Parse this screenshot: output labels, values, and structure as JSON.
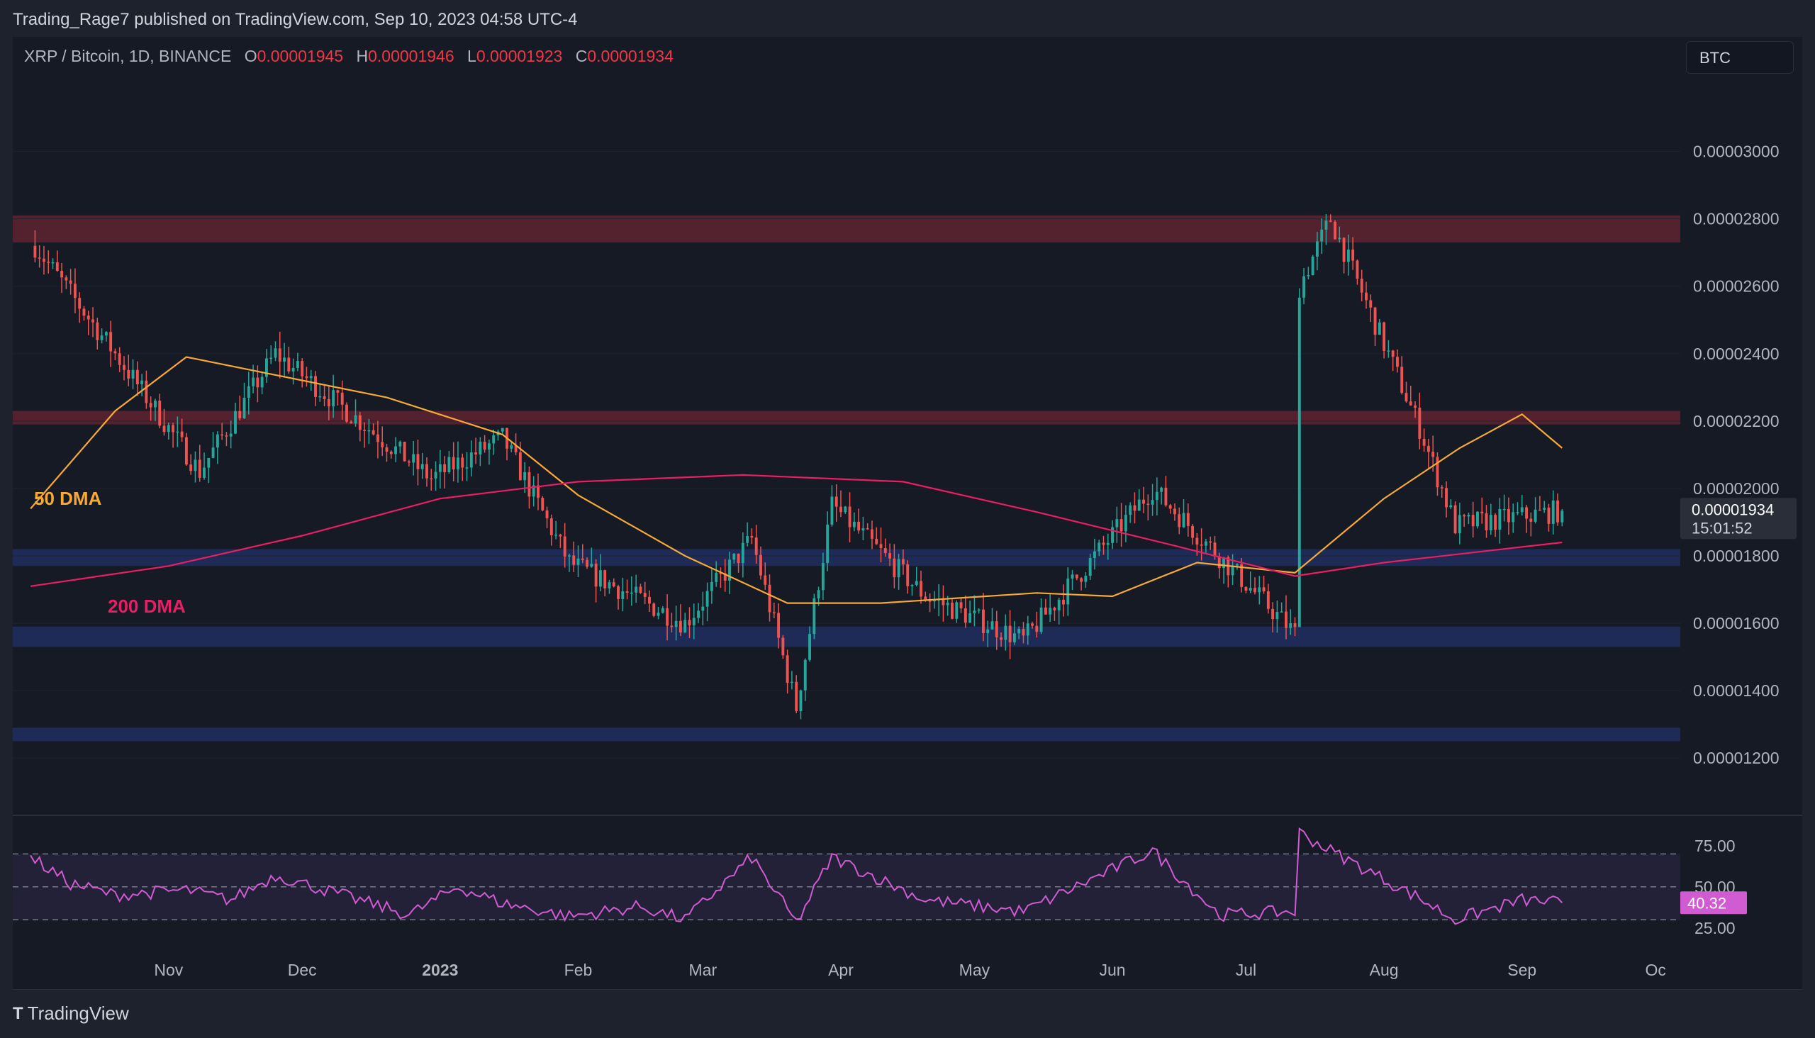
{
  "header": {
    "published": "Trading_Rage7 published on TradingView.com, Sep 10, 2023 04:58 UTC-4"
  },
  "legend": {
    "symbol": "XRP / Bitcoin, 1D, BINANCE",
    "o_label": "O",
    "o_value": "0.00001945",
    "h_label": "H",
    "h_value": "0.00001946",
    "l_label": "L",
    "l_value": "0.00001923",
    "c_label": "C",
    "c_value": "0.00001934"
  },
  "currency_button": "BTC",
  "footer": {
    "brand": "TradingView",
    "brand_icon": "tradingview-logo-icon"
  },
  "colors": {
    "background": "#161a25",
    "up": "#26a69a",
    "down": "#ef5350",
    "ma50": "#f7a935",
    "ma200": "#e91e63",
    "resistance_zone": "#5b2430",
    "support_zone": "#1e2d5c",
    "rsi": "#d15bd1"
  },
  "chart_data": [
    {
      "type": "candlestick",
      "title": "XRP / Bitcoin, 1D, BINANCE",
      "x_tick_labels": [
        "Nov",
        "Dec",
        "2023",
        "Feb",
        "Mar",
        "Apr",
        "May",
        "Jun",
        "Jul",
        "Aug",
        "Sep",
        "Oc"
      ],
      "y_tick_labels": [
        "0.00003000",
        "0.00002800",
        "0.00002600",
        "0.00002400",
        "0.00002200",
        "0.00002000",
        "0.00001800",
        "0.00001600",
        "0.00001400",
        "0.00001200"
      ],
      "ylim": [
        1.11e-05,
        3.18e-05
      ],
      "price_label": {
        "value": "0.00001934",
        "countdown": "15:01:52"
      },
      "key_points": [
        {
          "date": "2022-10-02",
          "price": 2.72e-05
        },
        {
          "date": "2022-10-20",
          "price": 2.4e-05
        },
        {
          "date": "2022-11-08",
          "price": 2.05e-05
        },
        {
          "date": "2022-11-25",
          "price": 2.4e-05
        },
        {
          "date": "2022-12-30",
          "price": 2.03e-05
        },
        {
          "date": "2023-01-15",
          "price": 2.15e-05
        },
        {
          "date": "2023-01-30",
          "price": 1.78e-05
        },
        {
          "date": "2023-02-25",
          "price": 1.6e-05
        },
        {
          "date": "2023-03-12",
          "price": 1.85e-05
        },
        {
          "date": "2023-03-22",
          "price": 1.35e-05
        },
        {
          "date": "2023-03-30",
          "price": 1.95e-05
        },
        {
          "date": "2023-04-20",
          "price": 1.68e-05
        },
        {
          "date": "2023-05-12",
          "price": 1.55e-05
        },
        {
          "date": "2023-06-10",
          "price": 2e-05
        },
        {
          "date": "2023-07-12",
          "price": 1.57e-05
        },
        {
          "date": "2023-07-13",
          "price": 2.6e-05
        },
        {
          "date": "2023-07-20",
          "price": 2.8e-05
        },
        {
          "date": "2023-08-09",
          "price": 2.18e-05
        },
        {
          "date": "2023-08-17",
          "price": 1.89e-05
        },
        {
          "date": "2023-09-10",
          "price": 1.934e-05
        }
      ],
      "zones": [
        {
          "kind": "resistance",
          "from": 2.73e-05,
          "to": 2.81e-05
        },
        {
          "kind": "resistance",
          "from": 2.19e-05,
          "to": 2.23e-05
        },
        {
          "kind": "support",
          "from": 1.77e-05,
          "to": 1.82e-05
        },
        {
          "kind": "support",
          "from": 1.53e-05,
          "to": 1.59e-05
        },
        {
          "kind": "support",
          "from": 1.25e-05,
          "to": 1.29e-05
        }
      ],
      "series": [
        {
          "name": "50 DMA",
          "points": [
            {
              "date": "2022-10-01",
              "value": 1.94e-05
            },
            {
              "date": "2022-10-20",
              "value": 2.23e-05
            },
            {
              "date": "2022-11-05",
              "value": 2.39e-05
            },
            {
              "date": "2022-11-20",
              "value": 2.35e-05
            },
            {
              "date": "2022-12-20",
              "value": 2.27e-05
            },
            {
              "date": "2023-01-15",
              "value": 2.16e-05
            },
            {
              "date": "2023-02-01",
              "value": 1.98e-05
            },
            {
              "date": "2023-02-25",
              "value": 1.8e-05
            },
            {
              "date": "2023-03-20",
              "value": 1.66e-05
            },
            {
              "date": "2023-04-10",
              "value": 1.66e-05
            },
            {
              "date": "2023-05-15",
              "value": 1.69e-05
            },
            {
              "date": "2023-06-01",
              "value": 1.68e-05
            },
            {
              "date": "2023-06-20",
              "value": 1.78e-05
            },
            {
              "date": "2023-07-12",
              "value": 1.75e-05
            },
            {
              "date": "2023-08-01",
              "value": 1.97e-05
            },
            {
              "date": "2023-08-18",
              "value": 2.12e-05
            },
            {
              "date": "2023-09-01",
              "value": 2.22e-05
            },
            {
              "date": "2023-09-10",
              "value": 2.12e-05
            }
          ]
        },
        {
          "name": "200 DMA",
          "points": [
            {
              "date": "2022-10-01",
              "value": 1.71e-05
            },
            {
              "date": "2022-11-01",
              "value": 1.77e-05
            },
            {
              "date": "2022-12-01",
              "value": 1.86e-05
            },
            {
              "date": "2023-01-01",
              "value": 1.97e-05
            },
            {
              "date": "2023-02-01",
              "value": 2.02e-05
            },
            {
              "date": "2023-03-10",
              "value": 2.04e-05
            },
            {
              "date": "2023-04-15",
              "value": 2.02e-05
            },
            {
              "date": "2023-05-15",
              "value": 1.93e-05
            },
            {
              "date": "2023-06-15",
              "value": 1.83e-05
            },
            {
              "date": "2023-07-12",
              "value": 1.74e-05
            },
            {
              "date": "2023-08-01",
              "value": 1.78e-05
            },
            {
              "date": "2023-09-10",
              "value": 1.84e-05
            }
          ]
        }
      ],
      "annotations": [
        "50 DMA",
        "200 DMA"
      ]
    },
    {
      "type": "line",
      "title": "",
      "y_tick_labels": [
        "75.00",
        "50.00",
        "25.00"
      ],
      "ylim": [
        15,
        90
      ],
      "levels": [
        70,
        50,
        30
      ],
      "current_value_label": "40.32",
      "series": [
        {
          "name": "",
          "points": [
            {
              "date": "2022-10-01",
              "value": 68
            },
            {
              "date": "2022-10-10",
              "value": 52
            },
            {
              "date": "2022-10-20",
              "value": 45
            },
            {
              "date": "2022-11-05",
              "value": 48
            },
            {
              "date": "2022-11-15",
              "value": 42
            },
            {
              "date": "2022-11-25",
              "value": 57
            },
            {
              "date": "2022-12-10",
              "value": 45
            },
            {
              "date": "2022-12-25",
              "value": 33
            },
            {
              "date": "2023-01-05",
              "value": 50
            },
            {
              "date": "2023-01-15",
              "value": 40
            },
            {
              "date": "2023-01-30",
              "value": 32
            },
            {
              "date": "2023-02-15",
              "value": 38
            },
            {
              "date": "2023-02-25",
              "value": 30
            },
            {
              "date": "2023-03-12",
              "value": 68
            },
            {
              "date": "2023-03-22",
              "value": 28
            },
            {
              "date": "2023-03-30",
              "value": 68
            },
            {
              "date": "2023-04-20",
              "value": 42
            },
            {
              "date": "2023-05-12",
              "value": 35
            },
            {
              "date": "2023-06-10",
              "value": 72
            },
            {
              "date": "2023-06-25",
              "value": 33
            },
            {
              "date": "2023-07-12",
              "value": 35
            },
            {
              "date": "2023-07-13",
              "value": 83
            },
            {
              "date": "2023-07-20",
              "value": 72
            },
            {
              "date": "2023-08-09",
              "value": 43
            },
            {
              "date": "2023-08-17",
              "value": 30
            },
            {
              "date": "2023-09-01",
              "value": 42
            },
            {
              "date": "2023-09-10",
              "value": 40.32
            }
          ]
        }
      ]
    }
  ]
}
